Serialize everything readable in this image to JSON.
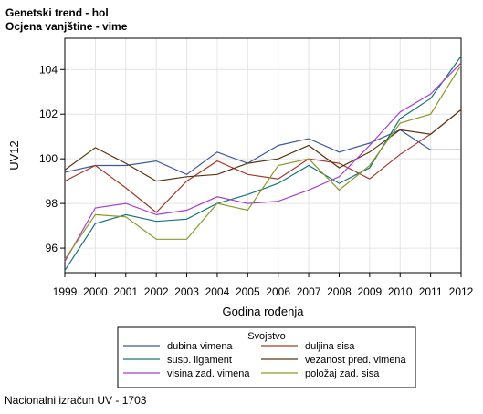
{
  "header": {
    "title": "Genetski trend - hol",
    "subtitle": "Ocjena vanjštine - vime"
  },
  "footnote": "Nacionalni izračun UV - 1703",
  "chart_data": {
    "type": "line",
    "title": "Genetski trend - hol",
    "subtitle": "Ocjena vanjštine - vime",
    "xlabel": "Godina rođenja",
    "ylabel": "UV12",
    "x": [
      1999,
      2000,
      2001,
      2002,
      2003,
      2004,
      2005,
      2006,
      2007,
      2008,
      2009,
      2010,
      2011,
      2012
    ],
    "xlim": [
      1999,
      2012
    ],
    "ylim": [
      94.9,
      105.4
    ],
    "yticks": [
      96,
      98,
      100,
      102,
      104
    ],
    "grid": true,
    "legend": {
      "title": "Svojstvo",
      "position": "bottom"
    },
    "series": [
      {
        "name": "dubina vimena",
        "color": "#3d5a9e",
        "values": [
          99.4,
          99.7,
          99.7,
          99.9,
          99.3,
          100.3,
          99.8,
          100.6,
          100.9,
          100.3,
          100.7,
          101.3,
          100.4,
          100.4
        ]
      },
      {
        "name": "duljina sisa",
        "color": "#a23a2e",
        "values": [
          99.0,
          99.7,
          98.7,
          97.6,
          99.0,
          99.9,
          99.3,
          99.1,
          100.0,
          99.8,
          99.1,
          100.2,
          101.1,
          102.2
        ]
      },
      {
        "name": "susp. ligament",
        "color": "#16757c",
        "values": [
          95.0,
          97.1,
          97.5,
          97.2,
          97.3,
          98.0,
          98.4,
          98.9,
          99.7,
          98.9,
          99.6,
          101.8,
          102.7,
          104.6
        ]
      },
      {
        "name": "vezanost pred. vimena",
        "color": "#5a3512",
        "values": [
          99.5,
          100.5,
          99.8,
          99.0,
          99.2,
          99.3,
          99.8,
          100.0,
          100.6,
          99.6,
          100.3,
          101.3,
          101.1,
          102.2
        ]
      },
      {
        "name": "visina zad. vimena",
        "color": "#a73fcc",
        "values": [
          95.4,
          97.8,
          98.0,
          97.5,
          97.7,
          98.3,
          98.0,
          98.1,
          98.6,
          99.2,
          100.6,
          102.1,
          102.9,
          104.3
        ]
      },
      {
        "name": "položaj zad. sisa",
        "color": "#8a9a2a",
        "values": [
          95.5,
          97.5,
          97.4,
          96.4,
          96.4,
          98.0,
          97.7,
          99.7,
          100.0,
          98.6,
          99.7,
          101.6,
          102.0,
          104.2
        ]
      }
    ]
  }
}
